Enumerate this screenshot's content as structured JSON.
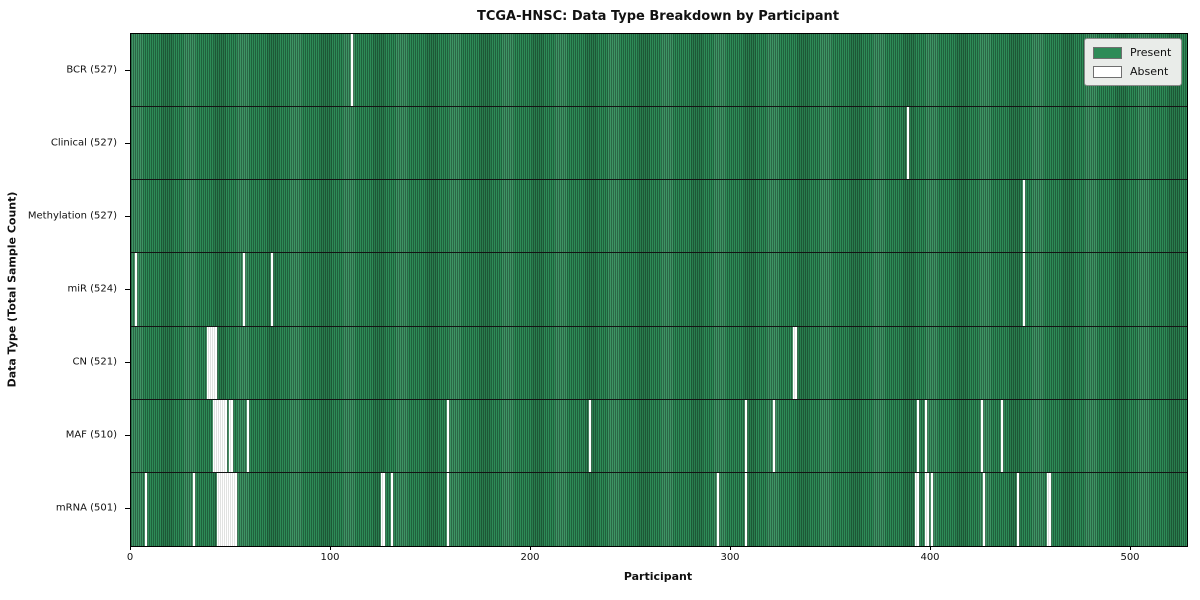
{
  "chart_data": {
    "type": "heatmap",
    "title": "TCGA-HNSC: Data Type Breakdown by Participant",
    "xlabel": "Participant",
    "ylabel": "Data Type (Total Sample Count)",
    "x_ticks": [
      0,
      100,
      200,
      300,
      400,
      500
    ],
    "x_range": [
      0,
      528
    ],
    "total_participants": 528,
    "grid": false,
    "legend": {
      "position": "upper right",
      "entries": [
        {
          "label": "Present",
          "color": "#2e8b57"
        },
        {
          "label": "Absent",
          "color": "#ffffff"
        }
      ]
    },
    "colors": {
      "present": "#2e8b57",
      "present_stripe_dark": "#1f6b45",
      "absent": "#ffffff",
      "row_divider": "#141414",
      "plot_border": "#000000",
      "legend_background": "#e9ece9"
    },
    "rows": [
      {
        "data_type": "BCR",
        "label": "BCR (527)",
        "present_count": 527,
        "absent_participants": [
          110
        ]
      },
      {
        "data_type": "Clinical",
        "label": "Clinical (527)",
        "present_count": 527,
        "absent_participants": [
          388
        ]
      },
      {
        "data_type": "Methylation",
        "label": "Methylation (527)",
        "present_count": 527,
        "absent_participants": [
          446
        ]
      },
      {
        "data_type": "miR",
        "label": "miR (524)",
        "present_count": 524,
        "absent_participants": [
          2,
          56,
          70,
          446
        ]
      },
      {
        "data_type": "CN",
        "label": "CN (521)",
        "present_count": 521,
        "absent_participants": [
          38,
          39,
          40,
          41,
          42,
          331,
          332
        ]
      },
      {
        "data_type": "MAF",
        "label": "MAF (510)",
        "present_count": 510,
        "absent_participants": [
          41,
          42,
          43,
          44,
          45,
          46,
          47,
          49,
          50,
          58,
          158,
          229,
          307,
          321,
          393,
          397,
          425,
          435
        ]
      },
      {
        "data_type": "mRNA",
        "label": "mRNA (501)",
        "present_count": 501,
        "absent_participants": [
          7,
          31,
          43,
          44,
          45,
          46,
          47,
          48,
          49,
          50,
          51,
          52,
          125,
          126,
          130,
          158,
          293,
          307,
          392,
          393,
          397,
          398,
          400,
          426,
          443,
          458,
          459
        ]
      }
    ]
  }
}
